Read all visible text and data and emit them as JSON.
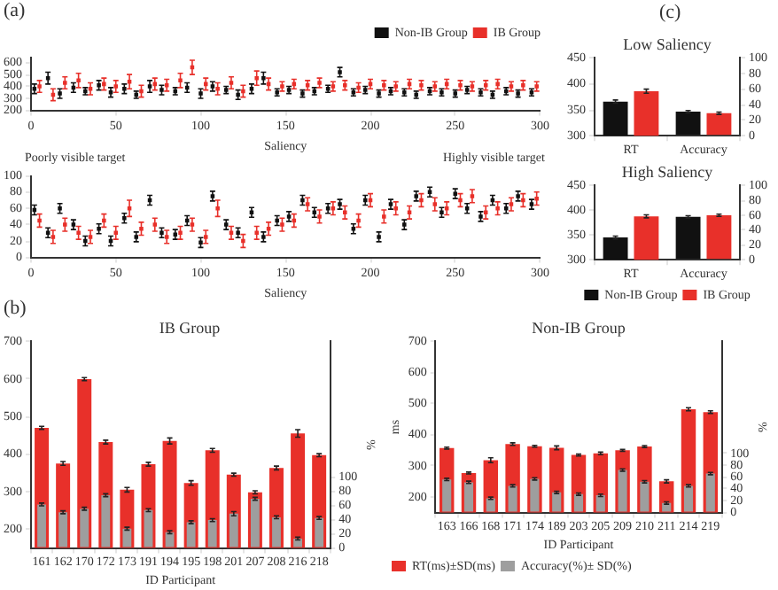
{
  "chart_data": [
    {
      "type": "scatter",
      "xlabel": "Saliency",
      "xlim": [
        0,
        300
      ],
      "xticks": [
        0,
        50,
        100,
        150,
        200,
        250,
        300
      ],
      "ylim": [
        200,
        650
      ],
      "yticks": [
        200,
        300,
        400,
        500,
        600
      ],
      "grid": false,
      "legend": "top right",
      "marker": "square",
      "annotations": [
        "(a)",
        "Poorly visible target",
        "Highly visible target"
      ],
      "series": [
        {
          "name": "Non-IB Group",
          "color": "#111111",
          "x": [
            2,
            10,
            17,
            25,
            32,
            40,
            47,
            55,
            62,
            70,
            77,
            85,
            92,
            100,
            107,
            115,
            122,
            130,
            137,
            145,
            152,
            160,
            167,
            175,
            182,
            190,
            197,
            205,
            212,
            220,
            227,
            235,
            242,
            250,
            257,
            265,
            272,
            280,
            287,
            295
          ],
          "values": [
            380,
            470,
            340,
            390,
            360,
            410,
            350,
            380,
            330,
            400,
            370,
            360,
            390,
            340,
            400,
            370,
            330,
            380,
            470,
            350,
            370,
            340,
            360,
            380,
            520,
            350,
            370,
            340,
            360,
            350,
            330,
            360,
            350,
            340,
            370,
            350,
            330,
            360,
            340,
            350
          ],
          "errors": [
            40,
            50,
            40,
            40,
            30,
            40,
            40,
            40,
            30,
            50,
            40,
            30,
            40,
            40,
            40,
            30,
            40,
            40,
            50,
            30,
            30,
            30,
            30,
            30,
            40,
            30,
            30,
            30,
            30,
            30,
            30,
            30,
            30,
            30,
            30,
            30,
            30,
            30,
            30,
            30
          ]
        },
        {
          "name": "IB Group",
          "color": "#e8302a",
          "x": [
            5,
            13,
            20,
            28,
            35,
            43,
            50,
            58,
            65,
            73,
            80,
            88,
            95,
            103,
            110,
            118,
            125,
            133,
            140,
            148,
            155,
            163,
            170,
            178,
            185,
            193,
            200,
            208,
            215,
            223,
            230,
            238,
            245,
            253,
            260,
            268,
            275,
            283,
            290,
            298
          ],
          "values": [
            400,
            330,
            430,
            450,
            380,
            420,
            400,
            440,
            360,
            420,
            410,
            450,
            560,
            420,
            380,
            430,
            360,
            470,
            420,
            400,
            420,
            410,
            430,
            400,
            410,
            390,
            420,
            410,
            400,
            420,
            410,
            400,
            420,
            410,
            400,
            410,
            420,
            400,
            410,
            400
          ],
          "errors": [
            50,
            50,
            50,
            60,
            50,
            50,
            50,
            60,
            50,
            50,
            50,
            60,
            60,
            50,
            50,
            50,
            50,
            60,
            50,
            40,
            40,
            40,
            40,
            40,
            40,
            40,
            40,
            40,
            40,
            40,
            40,
            40,
            40,
            40,
            40,
            40,
            40,
            40,
            40,
            40
          ]
        }
      ]
    },
    {
      "type": "scatter",
      "xlabel": "Saliency",
      "xlim": [
        0,
        300
      ],
      "xticks": [
        0,
        50,
        100,
        150,
        200,
        250,
        300
      ],
      "ylim": [
        0,
        100
      ],
      "yticks": [
        0,
        20,
        40,
        60,
        80,
        100
      ],
      "grid": false,
      "marker": "square",
      "annotations": [
        "(b)"
      ],
      "series": [
        {
          "color": "#111111",
          "x": [
            2,
            10,
            17,
            25,
            32,
            40,
            47,
            55,
            62,
            70,
            77,
            85,
            92,
            100,
            107,
            115,
            122,
            130,
            137,
            145,
            152,
            160,
            167,
            175,
            182,
            190,
            197,
            205,
            212,
            220,
            227,
            235,
            242,
            250,
            257,
            265,
            272,
            280,
            287,
            295
          ],
          "values": [
            58,
            30,
            60,
            40,
            20,
            35,
            20,
            48,
            25,
            70,
            30,
            28,
            45,
            18,
            75,
            40,
            30,
            55,
            25,
            45,
            50,
            70,
            55,
            60,
            65,
            35,
            70,
            25,
            65,
            40,
            75,
            80,
            55,
            78,
            60,
            50,
            70,
            60,
            75,
            65
          ],
          "errors": [
            6,
            6,
            6,
            6,
            6,
            6,
            6,
            6,
            6,
            6,
            6,
            6,
            6,
            6,
            6,
            6,
            6,
            6,
            6,
            6,
            6,
            6,
            6,
            6,
            6,
            6,
            6,
            6,
            6,
            6,
            6,
            6,
            6,
            6,
            6,
            6,
            6,
            6,
            6,
            6
          ]
        },
        {
          "color": "#e8302a",
          "x": [
            5,
            13,
            20,
            28,
            35,
            43,
            50,
            58,
            65,
            73,
            80,
            88,
            95,
            103,
            110,
            118,
            125,
            133,
            140,
            148,
            155,
            163,
            170,
            178,
            185,
            193,
            200,
            208,
            215,
            223,
            230,
            238,
            245,
            253,
            260,
            268,
            275,
            283,
            290,
            298
          ],
          "values": [
            45,
            25,
            40,
            30,
            25,
            45,
            30,
            60,
            35,
            40,
            25,
            30,
            40,
            25,
            60,
            30,
            20,
            30,
            35,
            40,
            45,
            65,
            50,
            60,
            55,
            45,
            70,
            50,
            60,
            55,
            70,
            65,
            60,
            70,
            75,
            55,
            60,
            65,
            70,
            72
          ],
          "errors": [
            8,
            8,
            8,
            8,
            8,
            8,
            8,
            10,
            8,
            8,
            8,
            8,
            8,
            8,
            10,
            8,
            8,
            8,
            8,
            8,
            8,
            8,
            8,
            8,
            8,
            8,
            8,
            8,
            8,
            8,
            8,
            8,
            8,
            8,
            8,
            8,
            8,
            8,
            8,
            8
          ]
        }
      ]
    },
    {
      "type": "bar",
      "title": "Low Saliency",
      "categories": [
        "RT",
        "Accuracy"
      ],
      "ylim": [
        300,
        450
      ],
      "yticks": [
        300,
        350,
        400,
        450
      ],
      "y2lim": [
        0,
        100
      ],
      "y2ticks": [
        0,
        20,
        40,
        60,
        80,
        100
      ],
      "grid": false,
      "annotations": [
        "(c)"
      ],
      "series": [
        {
          "color": "#111111",
          "values": [
            366,
            null
          ],
          "errors": [
            3,
            null
          ]
        },
        {
          "color": "#e8302a",
          "values": [
            386,
            null
          ],
          "errors": [
            4,
            null
          ]
        },
        {
          "color": "#111111",
          "axis": "y2",
          "values": [
            null,
            31
          ],
          "errors": [
            null,
            1.5
          ]
        },
        {
          "color": "#e8302a",
          "axis": "y2",
          "values": [
            null,
            29
          ],
          "errors": [
            null,
            1.5
          ]
        }
      ]
    },
    {
      "type": "bar",
      "title": "High Saliency",
      "categories": [
        "RT",
        "Accuracy"
      ],
      "ylim": [
        300,
        450
      ],
      "yticks": [
        300,
        350,
        400,
        450
      ],
      "y2lim": [
        0,
        100
      ],
      "y2ticks": [
        0,
        20,
        40,
        60,
        80,
        100
      ],
      "grid": false,
      "legend": "bottom",
      "series": [
        {
          "name": "Non-IB Group",
          "color": "#111111",
          "values": [
            345,
            null
          ],
          "errors": [
            3,
            null
          ]
        },
        {
          "name": "IB Group",
          "color": "#e8302a",
          "values": [
            388,
            null
          ],
          "errors": [
            3,
            null
          ]
        },
        {
          "color": "#111111",
          "axis": "y2",
          "values": [
            null,
            58
          ],
          "errors": [
            null,
            1.5
          ]
        },
        {
          "color": "#e8302a",
          "axis": "y2",
          "values": [
            null,
            60
          ],
          "errors": [
            null,
            1.5
          ]
        }
      ]
    },
    {
      "type": "bar",
      "title": "IB Group",
      "xlabel": "ID Participant",
      "y2label": "%",
      "categories": [
        "161",
        "162",
        "170",
        "172",
        "173",
        "191",
        "194",
        "195",
        "198",
        "201",
        "207",
        "208",
        "216",
        "218"
      ],
      "ylim": [
        150,
        700
      ],
      "yticks": [
        200,
        300,
        400,
        500,
        600,
        700
      ],
      "y2lim": [
        0,
        290
      ],
      "y2ticks": [
        0,
        20,
        40,
        60,
        80,
        100
      ],
      "grid": false,
      "series": [
        {
          "color": "#e8302a",
          "values": [
            470,
            375,
            600,
            432,
            305,
            373,
            435,
            323,
            410,
            345,
            298,
            363,
            455,
            397
          ],
          "errors": [
            4,
            5,
            4,
            5,
            6,
            5,
            8,
            6,
            5,
            4,
            4,
            5,
            10,
            4
          ]
        },
        {
          "color": "#9e9e9e",
          "axis": "y2",
          "values": [
            61,
            50,
            55,
            74,
            27,
            53,
            22,
            36,
            39,
            48,
            69,
            43,
            13,
            42
          ],
          "errors": [
            2,
            2,
            2,
            2,
            2,
            2,
            2,
            2,
            2,
            3,
            2,
            2,
            2,
            2
          ]
        }
      ]
    },
    {
      "type": "bar",
      "title": "Non-IB Group",
      "xlabel": "ID Participant",
      "ylabel": "ms",
      "y2label": "%",
      "categories": [
        "163",
        "166",
        "168",
        "171",
        "174",
        "189",
        "203",
        "205",
        "209",
        "210",
        "211",
        "214",
        "219"
      ],
      "ylim": [
        150,
        700
      ],
      "yticks": [
        200,
        300,
        400,
        500,
        600,
        700
      ],
      "y2lim": [
        0,
        290
      ],
      "y2ticks": [
        0,
        20,
        40,
        60,
        80,
        100
      ],
      "grid": false,
      "legend": "bottom left",
      "series": [
        {
          "name": "RT(ms)±SD(ms)",
          "color": "#e8302a",
          "values": [
            357,
            277,
            318,
            370,
            363,
            358,
            335,
            340,
            350,
            362,
            250,
            482,
            473
          ],
          "errors": [
            3,
            3,
            8,
            4,
            3,
            6,
            3,
            4,
            3,
            3,
            5,
            5,
            4
          ]
        },
        {
          "name": "Accuracy(%)± SD(%)",
          "color": "#9e9e9e",
          "axis": "y2",
          "values": [
            56,
            51,
            24,
            45,
            57,
            34,
            31,
            29,
            72,
            52,
            16,
            45,
            66
          ],
          "errors": [
            2,
            2,
            2,
            2,
            2,
            2,
            2,
            2,
            2,
            2,
            2,
            2,
            2
          ]
        }
      ]
    }
  ]
}
